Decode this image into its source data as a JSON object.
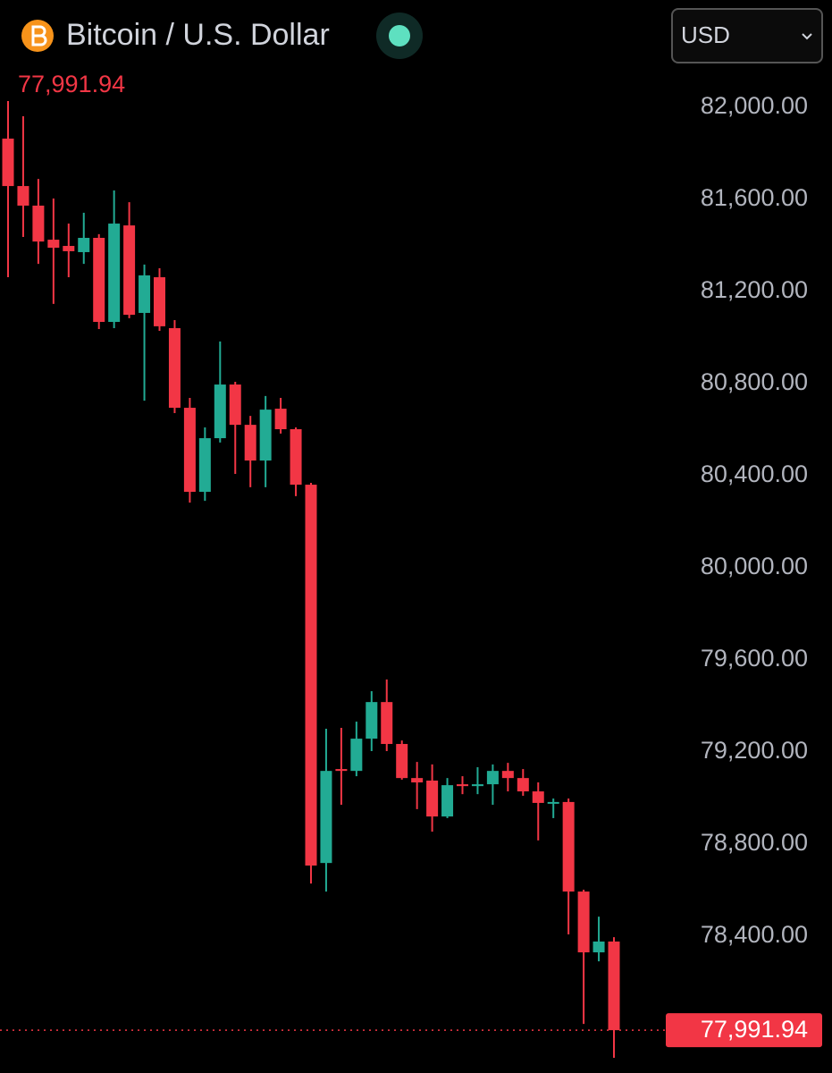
{
  "chart_data": {
    "type": "candlestick",
    "title": "Bitcoin / U.S. Dollar",
    "currency": "USD",
    "last_price": {
      "value": 77991.94,
      "label": "77,991.94"
    },
    "up_color": "#22ab94",
    "down_color": "#f23645",
    "ylim": [
      77806,
      82466
    ],
    "yticks": [
      {
        "value": 82000,
        "label": "82,000.00"
      },
      {
        "value": 81600,
        "label": "81,600.00"
      },
      {
        "value": 81200,
        "label": "81,200.00"
      },
      {
        "value": 80800,
        "label": "80,800.00"
      },
      {
        "value": 80400,
        "label": "80,400.00"
      },
      {
        "value": 80000,
        "label": "80,000.00"
      },
      {
        "value": 79600,
        "label": "79,600.00"
      },
      {
        "value": 79200,
        "label": "79,200.00"
      },
      {
        "value": 78800,
        "label": "78,800.00"
      },
      {
        "value": 78400,
        "label": "78,400.00"
      }
    ],
    "open": [
      81864,
      81658,
      81573,
      81425,
      81398,
      81371,
      81433,
      81068,
      81487,
      81107,
      81262,
      81041,
      80695,
      80330,
      80563,
      80796,
      80621,
      80466,
      80691,
      80602,
      80361,
      78718,
      79126,
      79118,
      79258,
      79417,
      79235,
      79087,
      79076,
      78920,
      79060,
      79052,
      79060,
      79118,
      79087,
      79029,
      78979,
      78983,
      78594,
      78330,
      78377
    ],
    "high": [
      82027,
      81961,
      81689,
      81604,
      81495,
      81542,
      81449,
      81639,
      81588,
      81317,
      81301,
      81076,
      80738,
      80610,
      80983,
      80808,
      80660,
      80746,
      80738,
      80610,
      80369,
      79301,
      79305,
      79332,
      79464,
      79515,
      79250,
      79157,
      79146,
      79087,
      79095,
      79134,
      79146,
      79153,
      79126,
      79068,
      78998,
      78998,
      78602,
      78485,
      78396
    ],
    "low": [
      81262,
      81437,
      81320,
      81146,
      81262,
      81320,
      81037,
      81041,
      81084,
      80726,
      81029,
      80672,
      80283,
      80291,
      80544,
      80408,
      80350,
      80350,
      80583,
      80311,
      78629,
      78594,
      78971,
      79095,
      79204,
      79204,
      79080,
      78952,
      78854,
      78913,
      79017,
      79017,
      78971,
      79029,
      79010,
      78816,
      78913,
      78408,
      78019,
      78291,
      77872
    ],
    "close": [
      81658,
      81573,
      81417,
      81390,
      81375,
      81433,
      81068,
      81495,
      81099,
      81270,
      81049,
      80695,
      80330,
      80563,
      80796,
      80621,
      80466,
      80687,
      80602,
      80361,
      78707,
      79118,
      79118,
      79258,
      79417,
      79235,
      79087,
      79068,
      78920,
      79056,
      79052,
      79060,
      79118,
      79087,
      79029,
      78979,
      78983,
      78594,
      78330,
      78377,
      77991.94
    ]
  }
}
